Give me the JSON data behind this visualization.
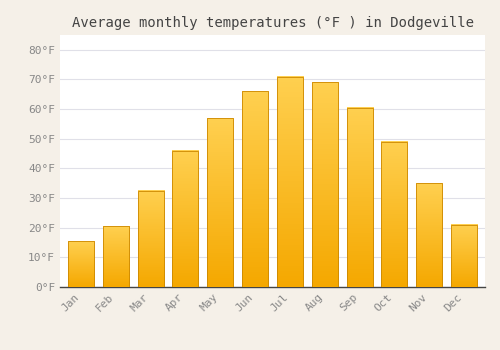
{
  "title": "Average monthly temperatures (°F ) in Dodgeville",
  "months": [
    "Jan",
    "Feb",
    "Mar",
    "Apr",
    "May",
    "Jun",
    "Jul",
    "Aug",
    "Sep",
    "Oct",
    "Nov",
    "Dec"
  ],
  "values": [
    15.5,
    20.5,
    32.5,
    46,
    57,
    66,
    71,
    69,
    60.5,
    49,
    35,
    21
  ],
  "bar_color_bottom": "#F5A800",
  "bar_color_top": "#FFD050",
  "bar_edge_color": "#CC8800",
  "background_color": "#F5F0E8",
  "plot_bg_color": "#FFFFFF",
  "grid_color": "#E0E0E8",
  "ylim": [
    0,
    85
  ],
  "yticks": [
    0,
    10,
    20,
    30,
    40,
    50,
    60,
    70,
    80
  ],
  "ytick_labels": [
    "0°F",
    "10°F",
    "20°F",
    "30°F",
    "40°F",
    "50°F",
    "60°F",
    "70°F",
    "80°F"
  ],
  "title_fontsize": 10,
  "tick_fontsize": 8,
  "tick_color": "#888888",
  "title_color": "#444444",
  "bar_width": 0.75
}
